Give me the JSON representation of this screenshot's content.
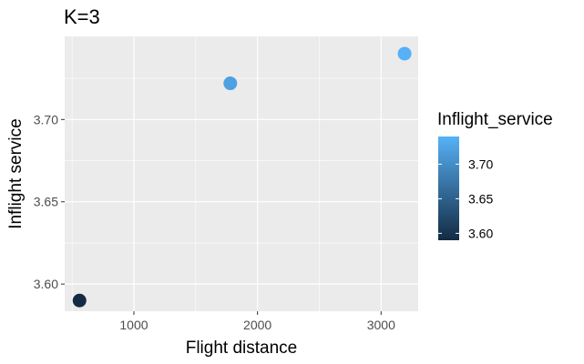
{
  "chart_data": {
    "type": "scatter",
    "title": "K=3",
    "xlabel": "Flight distance",
    "ylabel": "Inflight service",
    "xlim": [
      440,
      3300
    ],
    "ylim": [
      3.5835,
      3.7505
    ],
    "x_ticks": [
      1000,
      2000,
      3000
    ],
    "y_ticks": [
      3.6,
      3.65,
      3.7
    ],
    "x_tick_labels": [
      "1000",
      "2000",
      "3000"
    ],
    "y_tick_labels": [
      "3.60",
      "3.65",
      "3.70"
    ],
    "grid": true,
    "points": [
      {
        "x": 560,
        "y": 3.59
      },
      {
        "x": 1780,
        "y": 3.722
      },
      {
        "x": 3190,
        "y": 3.74
      }
    ],
    "color_scale": {
      "title": "Inflight_service",
      "low_color": "#132b43",
      "high_color": "#56b1f7",
      "range": [
        3.59,
        3.74
      ],
      "ticks": [
        3.6,
        3.65,
        3.7
      ],
      "tick_labels": [
        "3.60",
        "3.65",
        "3.70"
      ]
    },
    "legend_position": "right"
  }
}
